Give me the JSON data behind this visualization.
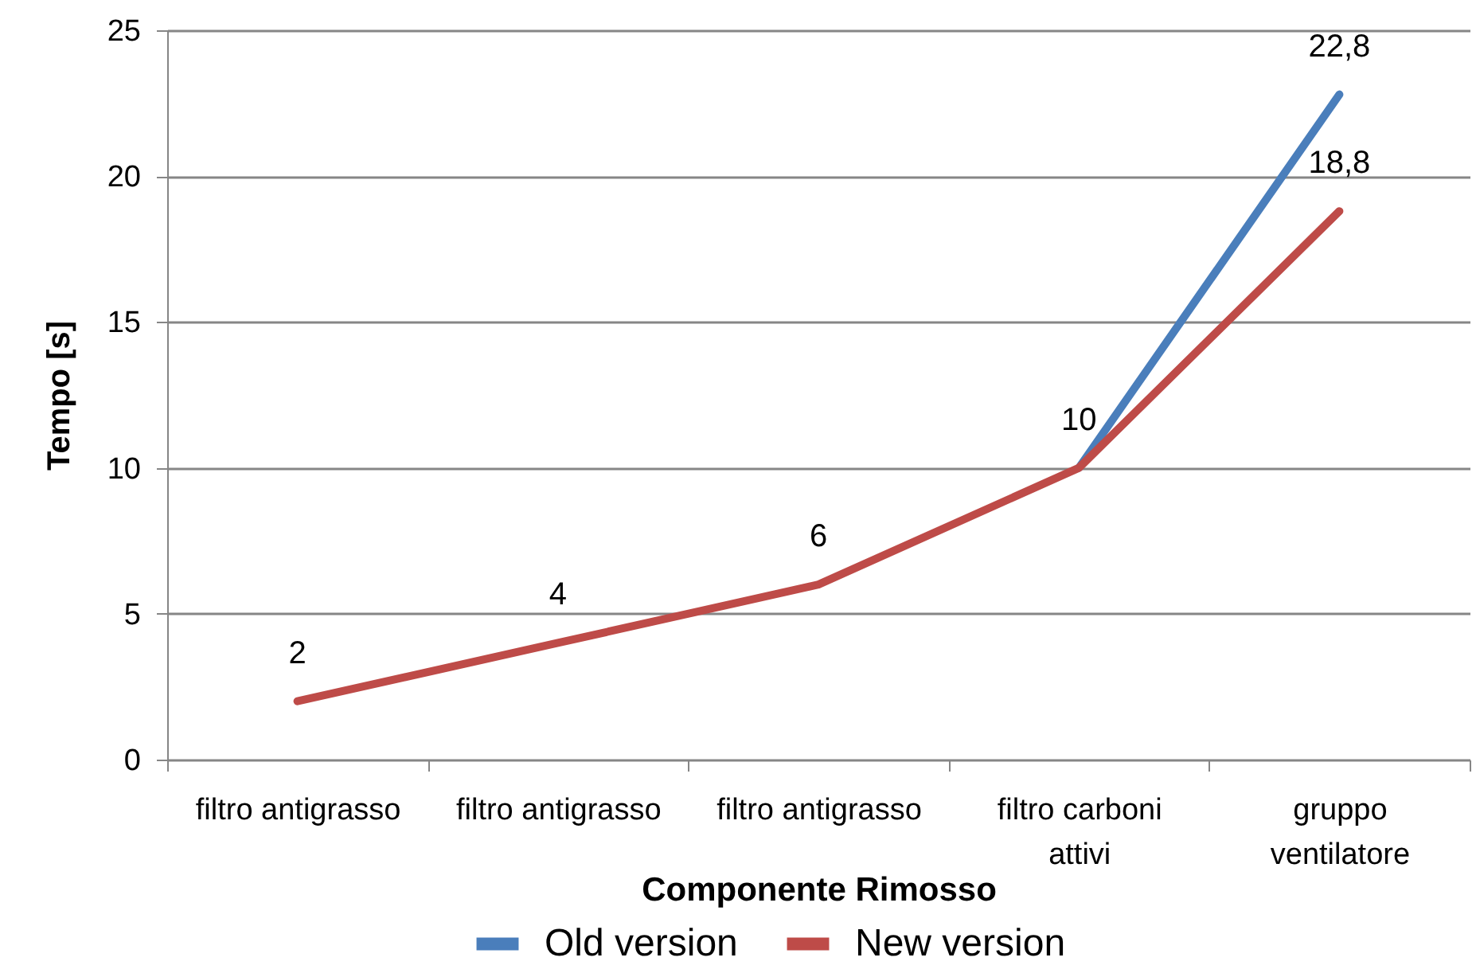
{
  "chart_data": {
    "type": "line",
    "xlabel": "Componente Rimosso",
    "ylabel": "Tempo [s]",
    "categories": [
      "filtro antigrasso",
      "filtro antigrasso",
      "filtro antigrasso",
      "filtro carboni attivi",
      "gruppo ventilatore"
    ],
    "series": [
      {
        "name": "Old version",
        "color": "#4a7ebb",
        "values": [
          null,
          null,
          null,
          10,
          22.8
        ],
        "value_labels": [
          null,
          null,
          null,
          "10",
          "22,8"
        ]
      },
      {
        "name": "New version",
        "color": "#be4b48",
        "values": [
          2,
          4,
          6,
          10,
          18.8
        ],
        "value_labels": [
          "2",
          "4",
          "6",
          null,
          "18,8"
        ]
      }
    ],
    "ylim": [
      0,
      25
    ],
    "yticks": [
      0,
      5,
      10,
      15,
      20,
      25
    ],
    "grid": "y",
    "legend": "bottom",
    "marker": "none",
    "line_style": "solid"
  }
}
